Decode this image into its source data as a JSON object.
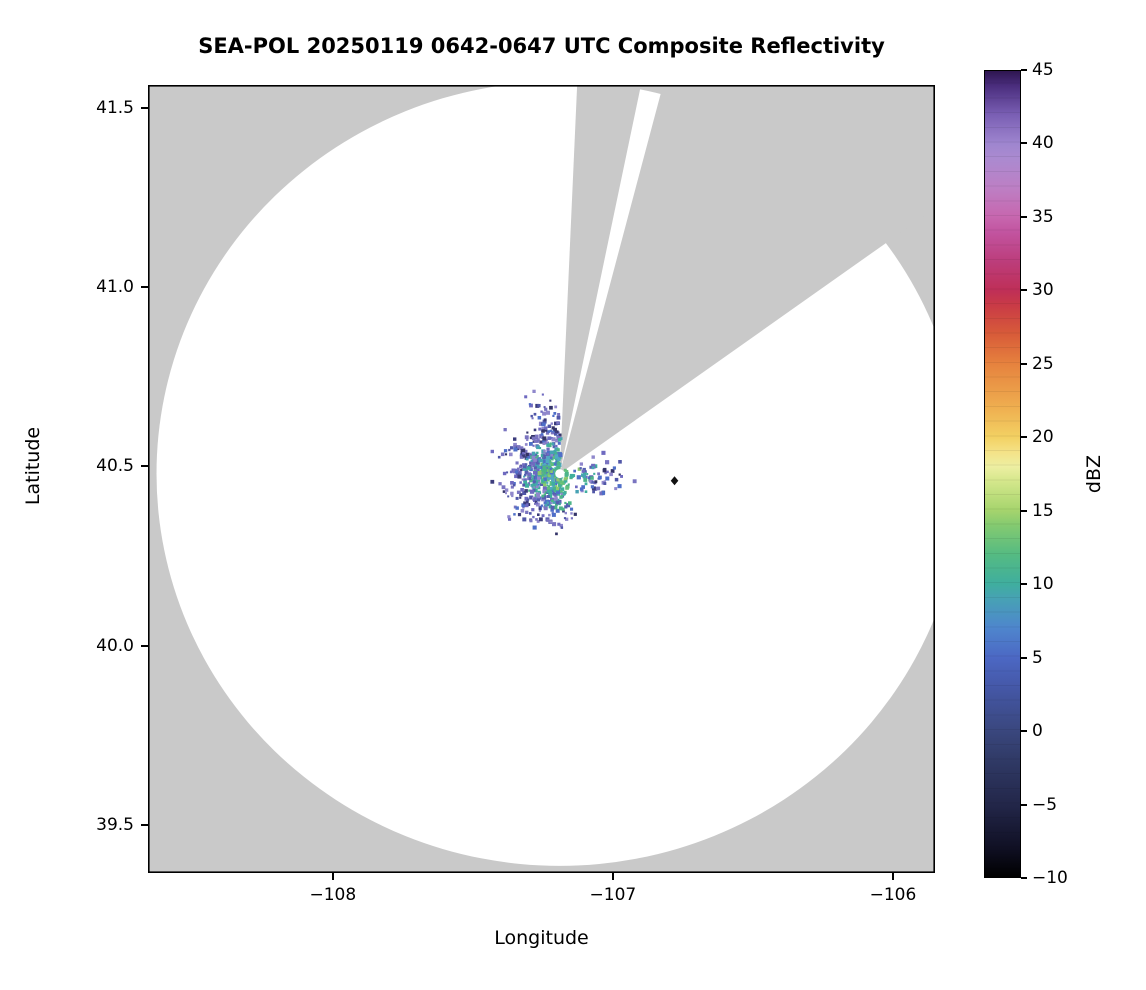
{
  "figure": {
    "title": "SEA-POL 20250119 0642-0647 UTC Composite Reflectivity"
  },
  "chart_data": {
    "type": "heatmap",
    "subtype": "radar-ppi-composite-reflectivity",
    "title": "SEA-POL 20250119 0642-0647 UTC Composite Reflectivity",
    "xlabel": "Longitude",
    "ylabel": "Latitude",
    "xlim": [
      -108.66,
      -105.85
    ],
    "ylim": [
      39.365,
      41.565
    ],
    "grid": false,
    "xticks": [
      -108,
      -107,
      -106
    ],
    "xtick_labels": [
      "−108",
      "−107",
      "−106"
    ],
    "yticks": [
      39.5,
      40.0,
      40.5,
      41.0,
      41.5
    ],
    "ytick_labels": [
      "39.5",
      "40.0",
      "40.5",
      "41.0",
      "41.5"
    ],
    "colorbar": {
      "label": "dBZ",
      "min": -10,
      "max": 45,
      "ticks": [
        -10,
        -5,
        0,
        5,
        10,
        15,
        20,
        25,
        30,
        35,
        40,
        45
      ],
      "tick_labels": [
        "−10",
        "−5",
        "0",
        "5",
        "10",
        "15",
        "20",
        "25",
        "30",
        "35",
        "40",
        "45"
      ],
      "stops": [
        {
          "value": -10,
          "color": "#000000"
        },
        {
          "value": -8,
          "color": "#101024"
        },
        {
          "value": -5,
          "color": "#23274a"
        },
        {
          "value": -2,
          "color": "#303a66"
        },
        {
          "value": 0,
          "color": "#3a477e"
        },
        {
          "value": 3,
          "color": "#4558a8"
        },
        {
          "value": 5,
          "color": "#4c68c4"
        },
        {
          "value": 7,
          "color": "#4e86cd"
        },
        {
          "value": 9,
          "color": "#47a2b4"
        },
        {
          "value": 10,
          "color": "#3fae9e"
        },
        {
          "value": 12,
          "color": "#55bb82"
        },
        {
          "value": 14,
          "color": "#84ca70"
        },
        {
          "value": 15,
          "color": "#a5d46d"
        },
        {
          "value": 17,
          "color": "#d4e78b"
        },
        {
          "value": 18,
          "color": "#edefa2"
        },
        {
          "value": 19,
          "color": "#f4e287"
        },
        {
          "value": 20,
          "color": "#f3d163"
        },
        {
          "value": 22,
          "color": "#efaf50"
        },
        {
          "value": 25,
          "color": "#e6823e"
        },
        {
          "value": 27,
          "color": "#d85c39"
        },
        {
          "value": 29,
          "color": "#c93b46"
        },
        {
          "value": 30,
          "color": "#bf2f57"
        },
        {
          "value": 32,
          "color": "#bc3d7b"
        },
        {
          "value": 34,
          "color": "#c254a0"
        },
        {
          "value": 35,
          "color": "#c766ae"
        },
        {
          "value": 37,
          "color": "#bd7fc4"
        },
        {
          "value": 39,
          "color": "#ab8ad0"
        },
        {
          "value": 40,
          "color": "#9f86cf"
        },
        {
          "value": 42,
          "color": "#7a5fb4"
        },
        {
          "value": 44,
          "color": "#4a2d7d"
        },
        {
          "value": 45,
          "color": "#2e1650"
        }
      ]
    },
    "radar": {
      "name": "SEA-POL",
      "center_lon": -107.19,
      "center_lat": 40.48,
      "range_deg_lat": 1.095,
      "coverage_fill": "#ffffff",
      "nodata_fill": "#c9c9c9",
      "blocked_sectors_deg": [
        [
          2.5,
          11.5
        ],
        [
          14.5,
          54
        ]
      ]
    },
    "echoes": {
      "description": "Weak reflectivity echoes (~0-15 dBZ) clustered within ~0.25 deg of the radar, absent in the blocked sector to the NNE/NE",
      "seed": 20250119,
      "palette_core": [
        "#3fae9e",
        "#4db488",
        "#63c07a",
        "#52a8c4",
        "#4f6fc8",
        "#8cc96c"
      ],
      "palette_mid": [
        "#4f6fc8",
        "#5560b0",
        "#3fae9e",
        "#6f6ac0",
        "#4db488",
        "#8f86cc",
        "#47a2b4"
      ],
      "palette_outer": [
        "#5157a8",
        "#3c3c7c",
        "#6f6ac0",
        "#4f6fc8",
        "#9088cc",
        "#343468",
        "#7a74c0"
      ],
      "clusters": [
        {
          "az": 350,
          "az_spread": 14,
          "r_mean": 0.11,
          "r_spread": 0.05,
          "n": 150
        },
        {
          "az": 305,
          "az_spread": 18,
          "r_mean": 0.08,
          "r_spread": 0.04,
          "n": 130
        },
        {
          "az": 268,
          "az_spread": 18,
          "r_mean": 0.07,
          "r_spread": 0.04,
          "n": 150
        },
        {
          "az": 228,
          "az_spread": 18,
          "r_mean": 0.085,
          "r_spread": 0.045,
          "n": 150
        },
        {
          "az": 188,
          "az_spread": 14,
          "r_mean": 0.075,
          "r_spread": 0.04,
          "n": 110
        },
        {
          "az": 102,
          "az_spread": 14,
          "r_mean": 0.105,
          "r_spread": 0.035,
          "n": 70
        },
        {
          "az": 270,
          "az_spread": 90,
          "r_mean": 0.035,
          "r_spread": 0.02,
          "n": 130
        }
      ]
    },
    "markers": [
      {
        "shape": "dot",
        "lon": -107.19,
        "lat": 40.48,
        "color": "#ffffff",
        "name": "radar-site-dot"
      },
      {
        "shape": "diamond",
        "lon": -106.78,
        "lat": 40.46,
        "color": "#111111",
        "name": "site-diamond-marker"
      }
    ]
  }
}
